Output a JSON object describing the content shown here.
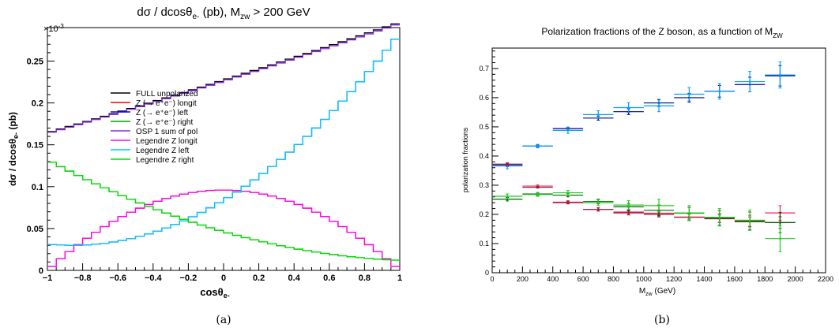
{
  "chart_data": [
    {
      "type": "line",
      "panel_label": "(a)",
      "title": "dσ / dcosθe- (pb), Mzw > 200 GeV",
      "title_parts": {
        "main": "dσ / dcosθ",
        "sub1": "e-",
        "mid": " (pb), M",
        "sub2": "zw",
        "tail": " > 200 GeV"
      },
      "xlabel": "cosθe-",
      "xlabel_parts": {
        "main": "cosθ",
        "sub": "e-"
      },
      "ylabel": "dσ / dcosθe- (pb)",
      "ylabel_parts": {
        "main": "dσ / dcosθ",
        "sub": "e-",
        "tail": " (pb)"
      },
      "exponent_label": "×10-3",
      "exponent_parts": {
        "base": "×10",
        "sup": "-3"
      },
      "xlim": [
        -1,
        1
      ],
      "ylim": [
        0,
        0.29
      ],
      "x_ticks": [
        -1,
        -0.8,
        -0.6,
        -0.4,
        -0.2,
        0,
        0.2,
        0.4,
        0.6,
        0.8,
        1
      ],
      "x_tick_labels": [
        "−1",
        "−0.8",
        "−0.6",
        "−0.4",
        "−0.2",
        "0",
        "0.2",
        "0.4",
        "0.6",
        "0.8",
        "1"
      ],
      "y_ticks": [
        0,
        0.05,
        0.1,
        0.15,
        0.2,
        0.25
      ],
      "y_tick_labels": [
        "0",
        "0.05",
        "0.1",
        "0.15",
        "0.2",
        "0.25"
      ],
      "n_bins": 40,
      "legend_position": "center-left",
      "series": [
        {
          "name": "FULL unpolarized",
          "color": "#000000",
          "model": "full"
        },
        {
          "name": "Z (→ e⁺e⁻) longit",
          "color": "#ff0000",
          "model": "longit"
        },
        {
          "name": "Z (→ e⁺e⁻) left",
          "color": "#0000ff",
          "model": "left"
        },
        {
          "name": "Z (→ e⁺e⁻) right",
          "color": "#00a000",
          "model": "right"
        },
        {
          "name": "OSP 1 sum of pol",
          "color": "#8a2be2",
          "model": "sum"
        },
        {
          "name": "Legendre Z longit",
          "color": "#ff00ff",
          "model": "longit"
        },
        {
          "name": "Legendre Z left",
          "color": "#00ccff",
          "model": "left"
        },
        {
          "name": "Legendre Z right",
          "color": "#00dd00",
          "model": "right"
        }
      ],
      "curve_params": {
        "longit": {
          "a": 0.096,
          "center": 0.0
        },
        "left": {
          "f": 0.0838,
          "u": 1.5,
          "v": 0.875
        },
        "right": {
          "f": 0.0462,
          "u": 1.3,
          "v": 0.56
        }
      }
    },
    {
      "type": "scatter",
      "panel_label": "(b)",
      "title": "Polarization fractions of the Z boson, as a function of MZW",
      "title_parts": {
        "main": "Polarization fractions of the Z boson, as a function of M",
        "sub": "ZW"
      },
      "xlabel": "Mzw (GeV)",
      "xlabel_parts": {
        "main": "M",
        "sub": "zw",
        "tail": " (GeV)"
      },
      "ylabel": "polarization fractions",
      "xlim": [
        0,
        2200
      ],
      "ylim": [
        0,
        0.77
      ],
      "x_ticks": [
        0,
        200,
        400,
        600,
        800,
        1000,
        1200,
        1400,
        1600,
        1800,
        2000,
        2200
      ],
      "x_tick_labels": [
        "0",
        "200",
        "400",
        "600",
        "800",
        "1000",
        "1200",
        "1400",
        "1600",
        "1800",
        "2000",
        "2200"
      ],
      "y_ticks": [
        0,
        0.1,
        0.2,
        0.3,
        0.4,
        0.5,
        0.6,
        0.7
      ],
      "y_tick_labels": [
        "0",
        "0.1",
        "0.2",
        "0.3",
        "0.4",
        "0.5",
        "0.6",
        "0.7"
      ],
      "bin_edges": [
        0,
        200,
        400,
        600,
        800,
        1000,
        1200,
        1400,
        1600,
        1800,
        2000
      ],
      "series": [
        {
          "color": "#00008b",
          "values": [
            0.37,
            0.434,
            0.494,
            0.53,
            0.552,
            0.582,
            0.6,
            0.622,
            0.645,
            0.675
          ],
          "errors": [
            0.006,
            0.004,
            0.005,
            0.007,
            0.01,
            0.012,
            0.015,
            0.02,
            0.025,
            0.035
          ]
        },
        {
          "color": "#00a0ff",
          "values": [
            0.366,
            0.434,
            0.488,
            0.542,
            0.566,
            0.572,
            0.612,
            0.622,
            0.655,
            0.678
          ],
          "errors": [
            0.01,
            0.006,
            0.01,
            0.013,
            0.017,
            0.02,
            0.023,
            0.027,
            0.035,
            0.045
          ]
        },
        {
          "color": "#ff2050",
          "values": [
            0.372,
            0.297,
            0.242,
            0.217,
            0.208,
            0.204,
            0.191,
            0.188,
            0.177,
            0.205
          ],
          "errors": [
            0.005,
            0.004,
            0.005,
            0.006,
            0.008,
            0.01,
            0.012,
            0.015,
            0.02,
            0.025
          ]
        },
        {
          "color": "#8b2040",
          "values": [
            0.372,
            0.293,
            0.24,
            0.217,
            0.205,
            0.2,
            0.19,
            0.185,
            0.175,
            0.172
          ],
          "errors": [
            0.004,
            0.003,
            0.004,
            0.005,
            0.007,
            0.009,
            0.011,
            0.013,
            0.016,
            0.02
          ]
        },
        {
          "color": "#006400",
          "values": [
            0.252,
            0.27,
            0.266,
            0.244,
            0.226,
            0.214,
            0.204,
            0.188,
            0.178,
            0.172
          ],
          "errors": [
            0.006,
            0.005,
            0.006,
            0.008,
            0.012,
            0.018,
            0.02,
            0.025,
            0.03,
            0.035
          ]
        },
        {
          "color": "#22cc22",
          "values": [
            0.262,
            0.268,
            0.274,
            0.24,
            0.232,
            0.23,
            0.205,
            0.19,
            0.18,
            0.117
          ],
          "errors": [
            0.008,
            0.006,
            0.008,
            0.01,
            0.015,
            0.022,
            0.025,
            0.03,
            0.035,
            0.045
          ]
        }
      ]
    }
  ]
}
